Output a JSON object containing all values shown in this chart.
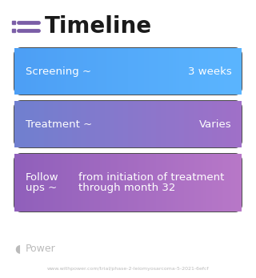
{
  "title": "Timeline",
  "title_icon_color": "#7B5EA7",
  "title_fontsize": 20,
  "title_fontweight": "bold",
  "background_color": "#ffffff",
  "rows": [
    {
      "label": "Screening ~",
      "value": "3 weeks",
      "color_left": "#4D9FF5",
      "color_right": "#5BB5FF",
      "text_color": "#ffffff",
      "label_fontsize": 9.5,
      "multiline": false,
      "label2": null,
      "value2": null
    },
    {
      "label": "Treatment ~",
      "value": "Varies",
      "color_left": "#7080D0",
      "color_right": "#A070C8",
      "text_color": "#ffffff",
      "label_fontsize": 9.5,
      "multiline": false,
      "label2": null,
      "value2": null
    },
    {
      "label": "Follow",
      "value": "from initiation of treatment",
      "label2": "ups ~",
      "value2": "through month 32",
      "color_left": "#9060BB",
      "color_right": "#B878C8",
      "text_color": "#ffffff",
      "label_fontsize": 9.5,
      "multiline": true
    }
  ],
  "watermark_text": "Power",
  "watermark_color": "#bbbbbb",
  "url_text": "www.withpower.com/trial/phase-2-leiomyosarcoma-5-2021-6efcf",
  "url_color": "#bbbbbb",
  "url_fontsize": 4.5
}
